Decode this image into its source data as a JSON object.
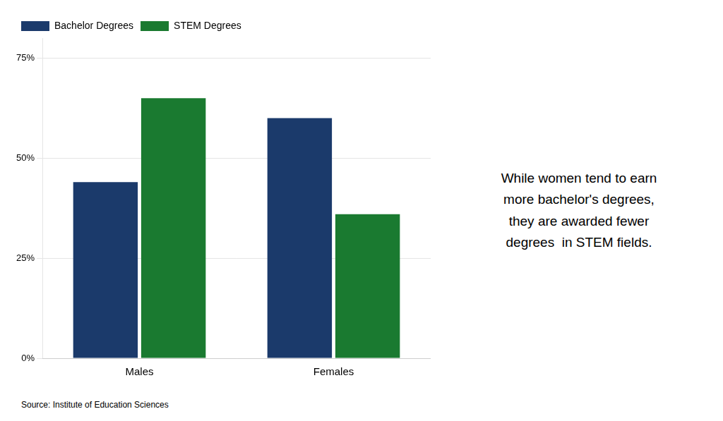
{
  "chart_data": {
    "type": "bar",
    "categories": [
      "Males",
      "Females"
    ],
    "series": [
      {
        "name": "Bachelor Degrees",
        "color": "#1b3a6b",
        "values": [
          0.44,
          0.6
        ]
      },
      {
        "name": "STEM Degrees",
        "color": "#1a7a30",
        "values": [
          0.65,
          0.36
        ]
      }
    ],
    "ylim": [
      0,
      0.8
    ],
    "yticks": [
      {
        "value": 0,
        "label": "0%"
      },
      {
        "value": 0.25,
        "label": "25%"
      },
      {
        "value": 0.5,
        "label": "50%"
      },
      {
        "value": 0.75,
        "label": "75%"
      }
    ],
    "grid": true,
    "legend": "upper left",
    "annotation": [
      "While women tend to earn",
      "more bachelor's degrees,",
      "they are awarded fewer",
      "degrees  in STEM fields."
    ],
    "source": "Source: Institute of Education Sciences"
  }
}
